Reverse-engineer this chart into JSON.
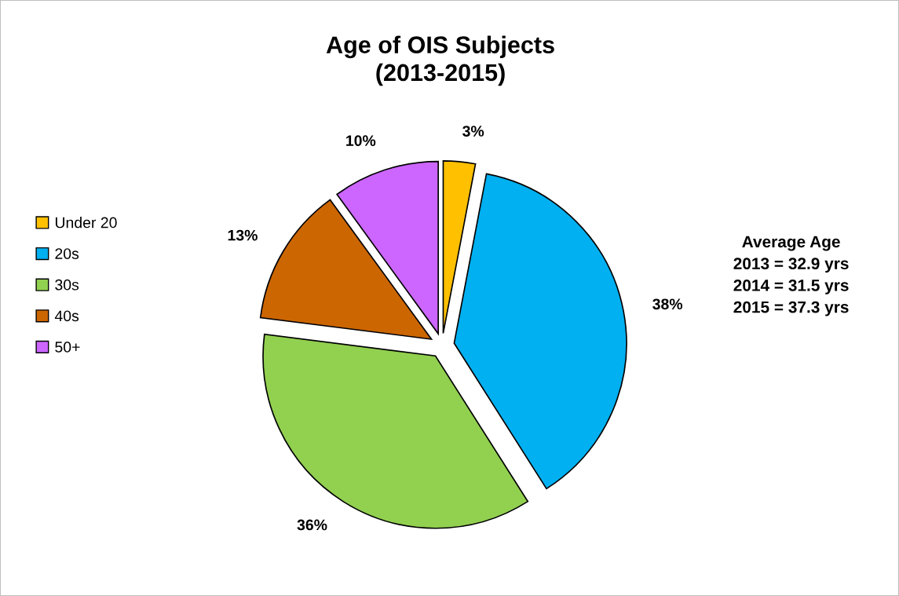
{
  "chart_data": {
    "type": "pie",
    "title": "Age of OIS Subjects\n(2013-2015)",
    "categories": [
      "Under 20",
      "20s",
      "30s",
      "40s",
      "50+"
    ],
    "values": [
      3,
      38,
      36,
      13,
      10
    ],
    "colors": [
      "#ffc000",
      "#00b0f0",
      "#92d050",
      "#cc6600",
      "#cc66ff"
    ],
    "value_labels": [
      "3%",
      "38%",
      "36%",
      "13%",
      "10%"
    ],
    "annotations": [
      "Average Age\n2013 = 32.9 yrs\n2014 = 31.5 yrs\n2015 = 37.3 yrs"
    ],
    "legend": "left"
  }
}
